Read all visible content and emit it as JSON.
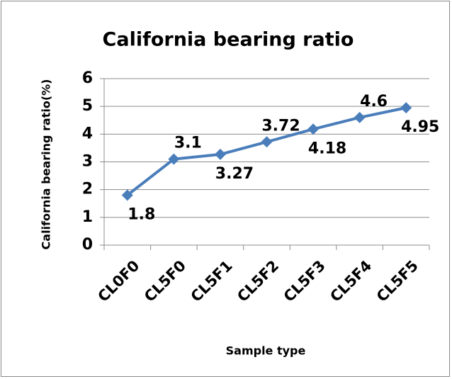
{
  "chart_data": {
    "type": "line",
    "title": "California bearing ratio",
    "x_label": "Sample type",
    "y_label": "California bearing ratio(%)",
    "categories": [
      "CL0F0",
      "CL5F0",
      "CL5F1",
      "CL5F2",
      "CL5F3",
      "CL5F4",
      "CL5F5"
    ],
    "values": [
      1.8,
      3.1,
      3.27,
      3.72,
      4.18,
      4.6,
      4.95
    ],
    "color": "#4a7ebb",
    "ylim": [
      0,
      6
    ],
    "yticks": [
      0,
      1,
      2,
      3,
      4,
      5,
      6
    ],
    "grid": true
  }
}
